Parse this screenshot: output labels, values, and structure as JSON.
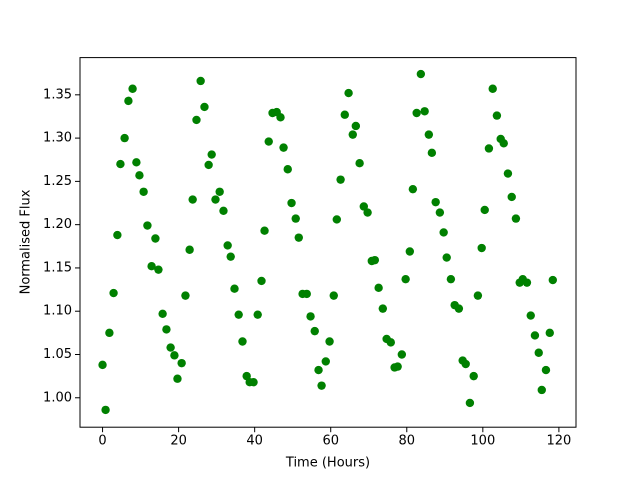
{
  "chart_data": {
    "type": "scatter",
    "xlabel": "Time (Hours)",
    "ylabel": "Normalised Flux",
    "color": "#008000",
    "x": [
      0,
      0.8,
      1.8,
      2.9,
      3.9,
      4.7,
      5.8,
      6.8,
      7.9,
      8.9,
      9.7,
      10.8,
      11.8,
      12.9,
      13.9,
      14.7,
      15.8,
      16.8,
      17.9,
      18.9,
      19.7,
      20.8,
      21.8,
      22.9,
      23.7,
      24.7,
      25.8,
      26.8,
      27.9,
      28.7,
      29.7,
      30.8,
      31.8,
      32.9,
      33.7,
      34.7,
      35.8,
      36.8,
      37.9,
      38.7,
      39.7,
      40.8,
      41.8,
      42.6,
      43.7,
      44.7,
      45.8,
      46.8,
      47.6,
      48.7,
      49.7,
      50.8,
      51.6,
      52.6,
      53.7,
      54.7,
      55.8,
      56.8,
      57.6,
      58.7,
      59.7,
      60.8,
      61.6,
      62.6,
      63.7,
      64.7,
      65.8,
      66.6,
      67.6,
      68.7,
      69.7,
      70.8,
      71.6,
      72.6,
      73.7,
      74.7,
      75.8,
      76.8,
      77.6,
      78.7,
      79.7,
      80.8,
      81.6,
      82.6,
      83.7,
      84.7,
      85.8,
      86.6,
      87.6,
      88.7,
      89.7,
      90.5,
      91.6,
      92.6,
      93.7,
      94.7,
      95.5,
      96.6,
      97.6,
      98.7,
      99.7,
      100.5,
      101.6,
      102.6,
      103.7,
      104.7,
      105.5,
      106.6,
      107.6,
      108.7,
      109.7,
      110.5,
      111.6,
      112.6,
      113.7,
      114.7,
      115.5,
      116.6,
      117.6,
      118.4
    ],
    "values": [
      1.038,
      0.986,
      1.075,
      1.121,
      1.188,
      1.27,
      1.3,
      1.343,
      1.357,
      1.272,
      1.257,
      1.238,
      1.199,
      1.152,
      1.184,
      1.148,
      1.097,
      1.079,
      1.058,
      1.049,
      1.022,
      1.04,
      1.118,
      1.171,
      1.229,
      1.321,
      1.366,
      1.336,
      1.269,
      1.281,
      1.229,
      1.238,
      1.216,
      1.176,
      1.163,
      1.126,
      1.096,
      1.065,
      1.025,
      1.018,
      1.018,
      1.096,
      1.135,
      1.193,
      1.296,
      1.329,
      1.33,
      1.324,
      1.289,
      1.264,
      1.225,
      1.207,
      1.185,
      1.12,
      1.12,
      1.094,
      1.077,
      1.032,
      1.014,
      1.042,
      1.065,
      1.118,
      1.206,
      1.252,
      1.327,
      1.352,
      1.304,
      1.314,
      1.271,
      1.221,
      1.214,
      1.158,
      1.159,
      1.127,
      1.103,
      1.068,
      1.064,
      1.035,
      1.036,
      1.05,
      1.137,
      1.169,
      1.241,
      1.329,
      1.374,
      1.331,
      1.304,
      1.283,
      1.226,
      1.214,
      1.191,
      1.162,
      1.137,
      1.107,
      1.103,
      1.043,
      1.039,
      0.994,
      1.025,
      1.118,
      1.173,
      1.217,
      1.288,
      1.357,
      1.326,
      1.299,
      1.294,
      1.259,
      1.232,
      1.207,
      1.133,
      1.137,
      1.133,
      1.095,
      1.072,
      1.052,
      1.009,
      1.032,
      1.075,
      1.136
    ],
    "xlim": [
      -5.93,
      124.5
    ],
    "ylim": [
      0.966,
      1.393
    ],
    "xticks": [
      0,
      20,
      40,
      60,
      80,
      100,
      120
    ],
    "yticks": [
      {
        "value": 1,
        "label": "1.00"
      },
      1.05,
      {
        "value": 1.1,
        "label": "1.10"
      },
      1.15,
      {
        "value": 1.2,
        "label": "1.20"
      },
      1.25,
      {
        "value": 1.3,
        "label": "1.30"
      },
      1.35
    ]
  }
}
